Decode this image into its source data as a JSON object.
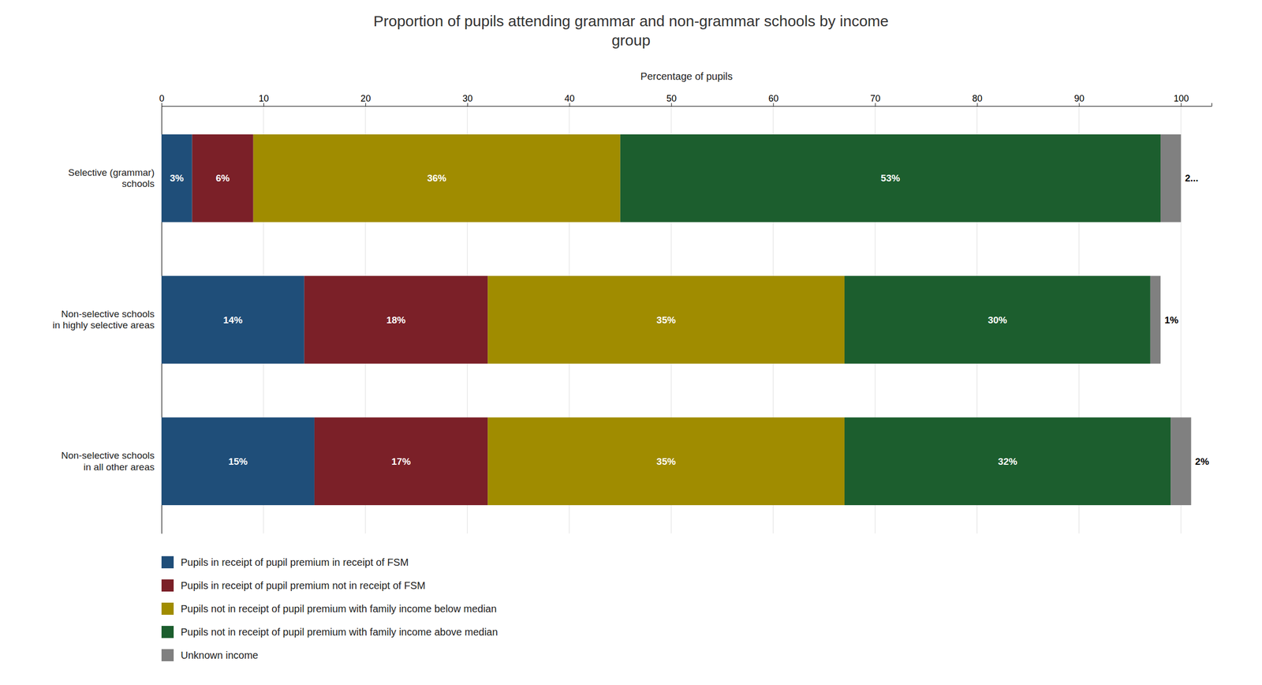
{
  "chart_data": {
    "type": "bar",
    "orientation": "horizontal",
    "stacked": true,
    "title": "Proportion of pupils attending grammar and non-grammar schools by income\ngroup",
    "xlabel": "Percentage of pupils",
    "categories": [
      "Non-selective schools\nin all other areas",
      "Non-selective schools\nin highly selective areas",
      "Selective (grammar)\nschools"
    ],
    "series": [
      {
        "name": "Pupils in receipt of pupil premium in receipt of FSM",
        "color": "#1F4E79",
        "values": [
          15,
          14,
          3
        ],
        "value_labels": [
          "15%",
          "14%",
          "3%"
        ]
      },
      {
        "name": "Pupils in receipt of pupil premium not in receipt of FSM",
        "color": "#7B2028",
        "values": [
          17,
          18,
          6
        ],
        "value_labels": [
          "17%",
          "18%",
          "6%"
        ]
      },
      {
        "name": "Pupils not in receipt of pupil premium with family income below median",
        "color": "#A08C00",
        "values": [
          35,
          35,
          36
        ],
        "value_labels": [
          "35%",
          "35%",
          "36%"
        ]
      },
      {
        "name": "Pupils not in receipt of pupil premium with family income above median",
        "color": "#1C5E2E",
        "values": [
          32,
          30,
          53
        ],
        "value_labels": [
          "32%",
          "30%",
          "53%"
        ]
      },
      {
        "name": "Unknown income",
        "color": "#808080",
        "values": [
          2,
          1,
          2
        ],
        "value_labels": [
          "2%",
          "1%",
          "2..."
        ]
      }
    ],
    "xlim": [
      0,
      103
    ],
    "xticks": [
      0,
      10,
      20,
      30,
      40,
      50,
      60,
      70,
      80,
      90,
      100
    ],
    "grid": true,
    "data_labels": true,
    "legend": "bottom"
  }
}
